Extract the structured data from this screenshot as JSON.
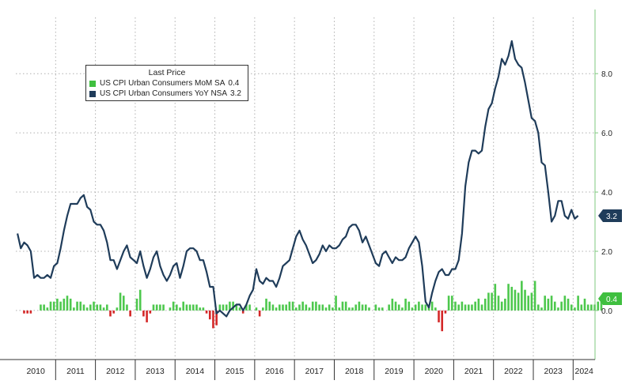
{
  "chart_data": {
    "type": "bar+line",
    "legend": {
      "title": "Last Price",
      "placement": "top-left",
      "entries": [
        {
          "label": "US CPI Urban Consumers MoM SA",
          "last": "0.4",
          "color": "#3fbf3f"
        },
        {
          "label": "US CPI Urban Consumers YoY NSA",
          "last": "3.2",
          "color": "#1f3c5a"
        }
      ]
    },
    "x_labels": [
      "2010",
      "2011",
      "2012",
      "2013",
      "2014",
      "2015",
      "2016",
      "2017",
      "2018",
      "2019",
      "2020",
      "2021",
      "2022",
      "2023",
      "2024"
    ],
    "x_range": [
      2010,
      2024.55
    ],
    "y_ticks": [
      "8.0",
      "6.0",
      "4.0",
      "2.0",
      "0.0"
    ],
    "y_tick_values": [
      8,
      6,
      4,
      2,
      0
    ],
    "ylim": [
      -1.55,
      9.9
    ],
    "y_axis_side": "right",
    "grid": true,
    "last_value_tags": [
      {
        "text": "3.2",
        "value": 3.2,
        "color": "#1f3c5a"
      },
      {
        "text": "0.4",
        "value": 0.4,
        "color": "#3fbf3f"
      }
    ],
    "colors": {
      "yoy_line": "#1f3c5a",
      "mom_pos": "#4dc84d",
      "mom_neg": "#d42828",
      "grid": "#b0b0b0",
      "axis": "#7fc97f"
    },
    "series": [
      {
        "name": "US CPI Urban Consumers YoY NSA",
        "type": "line",
        "start": 2010.0,
        "step": 0.0833333,
        "values": [
          2.6,
          2.1,
          2.3,
          2.2,
          2.0,
          1.1,
          1.2,
          1.1,
          1.1,
          1.2,
          1.1,
          1.5,
          1.6,
          2.1,
          2.7,
          3.2,
          3.6,
          3.6,
          3.6,
          3.8,
          3.9,
          3.5,
          3.4,
          3.0,
          2.9,
          2.9,
          2.7,
          2.3,
          1.7,
          1.7,
          1.4,
          1.7,
          2.0,
          2.2,
          1.8,
          1.7,
          1.6,
          2.0,
          1.5,
          1.1,
          1.4,
          1.8,
          2.0,
          1.5,
          1.2,
          1.0,
          1.2,
          1.5,
          1.6,
          1.1,
          1.5,
          2.0,
          2.1,
          2.1,
          2.0,
          1.7,
          1.7,
          1.3,
          0.8,
          0.8,
          -0.1,
          0.0,
          -0.1,
          -0.2,
          0.0,
          0.1,
          0.2,
          0.2,
          0.0,
          0.2,
          0.5,
          0.7,
          1.4,
          1.0,
          0.9,
          1.1,
          1.0,
          1.0,
          0.8,
          1.1,
          1.5,
          1.6,
          1.7,
          2.1,
          2.5,
          2.7,
          2.4,
          2.2,
          1.9,
          1.6,
          1.7,
          1.9,
          2.2,
          2.0,
          2.2,
          2.1,
          2.1,
          2.2,
          2.4,
          2.5,
          2.8,
          2.9,
          2.9,
          2.7,
          2.3,
          2.5,
          2.2,
          1.9,
          1.6,
          1.5,
          1.9,
          2.0,
          1.8,
          1.6,
          1.8,
          1.7,
          1.7,
          1.8,
          2.1,
          2.3,
          2.5,
          2.3,
          1.5,
          0.3,
          0.1,
          0.6,
          1.0,
          1.3,
          1.4,
          1.2,
          1.2,
          1.4,
          1.4,
          1.7,
          2.6,
          4.2,
          5.0,
          5.4,
          5.4,
          5.3,
          5.4,
          6.2,
          6.8,
          7.0,
          7.5,
          7.9,
          8.5,
          8.3,
          8.6,
          9.1,
          8.5,
          8.3,
          8.2,
          7.7,
          7.1,
          6.5,
          6.4,
          6.0,
          5.0,
          4.9,
          4.0,
          3.0,
          3.2,
          3.7,
          3.7,
          3.2,
          3.1,
          3.4,
          3.1,
          3.2
        ]
      },
      {
        "name": "US CPI Urban Consumers MoM SA",
        "type": "bar",
        "start": 2010.0,
        "step": 0.0833333,
        "values": [
          0.0,
          0.0,
          -0.1,
          -0.1,
          -0.1,
          0.0,
          0.0,
          0.2,
          0.2,
          0.1,
          0.3,
          0.3,
          0.4,
          0.3,
          0.4,
          0.5,
          0.4,
          0.1,
          0.3,
          0.3,
          0.2,
          0.1,
          0.2,
          0.3,
          0.2,
          0.2,
          0.1,
          0.2,
          -0.2,
          -0.1,
          0.1,
          0.6,
          0.5,
          0.2,
          -0.2,
          0.0,
          0.4,
          0.7,
          -0.2,
          -0.4,
          -0.1,
          0.2,
          0.2,
          0.2,
          0.2,
          0.0,
          0.1,
          0.3,
          0.2,
          0.1,
          0.3,
          0.2,
          0.2,
          0.2,
          0.2,
          0.1,
          0.1,
          -0.1,
          -0.3,
          -0.6,
          -0.5,
          0.2,
          0.2,
          0.2,
          0.3,
          0.3,
          0.2,
          0.1,
          -0.1,
          0.2,
          0.2,
          0.0,
          0.1,
          -0.2,
          0.1,
          0.4,
          0.3,
          0.2,
          0.1,
          0.2,
          0.2,
          0.2,
          0.3,
          0.3,
          0.1,
          0.2,
          0.3,
          0.2,
          0.1,
          0.3,
          0.3,
          0.2,
          0.2,
          0.1,
          0.2,
          0.1,
          0.5,
          0.1,
          0.3,
          0.3,
          0.1,
          0.1,
          0.2,
          0.3,
          0.2,
          0.2,
          0.1,
          0.0,
          0.2,
          0.1,
          0.1,
          0.0,
          0.2,
          0.4,
          0.3,
          0.2,
          0.1,
          0.4,
          0.3,
          0.1,
          0.2,
          0.3,
          0.2,
          0.2,
          0.2,
          0.3,
          0.1,
          -0.4,
          -0.7,
          -0.1,
          0.5,
          0.5,
          0.3,
          0.2,
          0.3,
          0.2,
          0.2,
          0.2,
          0.3,
          0.4,
          0.2,
          0.4,
          0.6,
          0.6,
          0.9,
          0.5,
          0.3,
          0.4,
          0.9,
          0.8,
          0.7,
          0.6,
          1.0,
          0.7,
          0.5,
          0.6,
          1.0,
          0.2,
          0.1,
          0.5,
          0.4,
          0.5,
          0.3,
          0.1,
          0.3,
          0.5,
          0.4,
          0.2,
          0.1,
          0.5,
          0.2,
          0.4,
          0.2,
          0.2,
          0.2,
          0.3,
          0.4
        ]
      }
    ]
  }
}
